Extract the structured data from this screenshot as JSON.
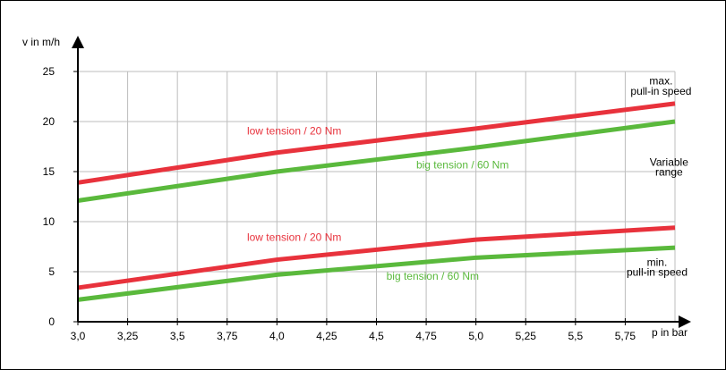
{
  "chart_data": {
    "type": "line",
    "title": "",
    "xlabel": "p in bar",
    "ylabel": "v in m/h",
    "x": [
      3.0,
      4.0,
      5.0,
      6.0
    ],
    "xlim": [
      3.0,
      6.0
    ],
    "ylim": [
      0,
      25
    ],
    "x_ticks": [
      "3,0",
      "3,25",
      "3,5",
      "3,75",
      "4,0",
      "4,25",
      "4,5",
      "4,75",
      "5,0",
      "5,25",
      "5,5",
      "5,75"
    ],
    "x_tick_values": [
      3.0,
      3.25,
      3.5,
      3.75,
      4.0,
      4.25,
      4.5,
      4.75,
      5.0,
      5.25,
      5.5,
      5.75
    ],
    "y_ticks": [
      "0",
      "5",
      "10",
      "15",
      "20",
      "25"
    ],
    "y_tick_values": [
      0,
      5,
      10,
      15,
      20,
      25
    ],
    "grid": true,
    "series": [
      {
        "group": "max",
        "color": "#e8323c",
        "values": [
          13.9,
          16.9,
          19.3,
          21.8
        ]
      },
      {
        "group": "max",
        "color": "#5ab93c",
        "values": [
          12.1,
          15.0,
          17.4,
          20.0
        ]
      },
      {
        "group": "min",
        "color": "#e8323c",
        "values": [
          3.4,
          6.2,
          8.2,
          9.4
        ]
      },
      {
        "group": "min",
        "color": "#5ab93c",
        "values": [
          2.2,
          4.7,
          6.4,
          7.4
        ]
      }
    ],
    "annotations": [
      {
        "id": "low_upper",
        "text": "low tension / 20 Nm",
        "x": 3.85,
        "y": 18.7,
        "color": "#e8323c",
        "anchor": "start"
      },
      {
        "id": "big_upper",
        "text": "big tension / 60 Nm",
        "x": 4.7,
        "y": 15.3,
        "color": "#5ab93c",
        "anchor": "start"
      },
      {
        "id": "low_lower",
        "text": "low tension / 20 Nm",
        "x": 3.85,
        "y": 8.1,
        "color": "#e8323c",
        "anchor": "start"
      },
      {
        "id": "big_lower",
        "text": "big tension / 60 Nm",
        "x": 4.55,
        "y": 4.2,
        "color": "#5ab93c",
        "anchor": "start"
      },
      {
        "id": "max1",
        "text": "max.",
        "x": 5.93,
        "y": 23.7,
        "color": "#000000",
        "anchor": "middle"
      },
      {
        "id": "max2",
        "text": "pull-in speed",
        "x": 5.93,
        "y": 22.7,
        "color": "#000000",
        "anchor": "middle"
      },
      {
        "id": "var1",
        "text": "Variable",
        "x": 5.97,
        "y": 15.6,
        "color": "#000000",
        "anchor": "middle"
      },
      {
        "id": "var2",
        "text": "range",
        "x": 5.97,
        "y": 14.6,
        "color": "#000000",
        "anchor": "middle"
      },
      {
        "id": "min1",
        "text": "min.",
        "x": 5.91,
        "y": 5.6,
        "color": "#000000",
        "anchor": "middle"
      },
      {
        "id": "min2",
        "text": "pull-in speed",
        "x": 5.91,
        "y": 4.6,
        "color": "#000000",
        "anchor": "middle"
      }
    ]
  }
}
